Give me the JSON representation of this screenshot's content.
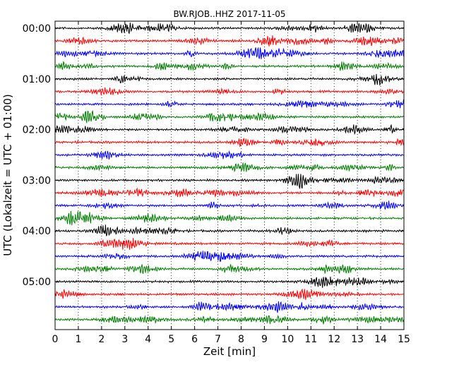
{
  "chart_data": {
    "type": "line",
    "title": "BW.RJOB..HHZ 2017-11-05",
    "xlabel": "Zeit  [min]",
    "ylabel": "UTC (Lokalzeit = UTC + 01:00)",
    "xlim": [
      0,
      15
    ],
    "x_ticks": [
      "0",
      "1",
      "2",
      "3",
      "4",
      "5",
      "6",
      "7",
      "8",
      "9",
      "10",
      "11",
      "12",
      "13",
      "14",
      "15"
    ],
    "y_ticks": [
      "00:00",
      "01:00",
      "02:00",
      "03:00",
      "04:00",
      "05:00"
    ],
    "trace_interval_min": 15,
    "trace_count": 24,
    "trace_colors": [
      "#000000",
      "#ff0000",
      "#0000ff",
      "#007f00"
    ],
    "grid": "vertical dotted",
    "waveform": "seismogram (amplitude not labeled)"
  }
}
